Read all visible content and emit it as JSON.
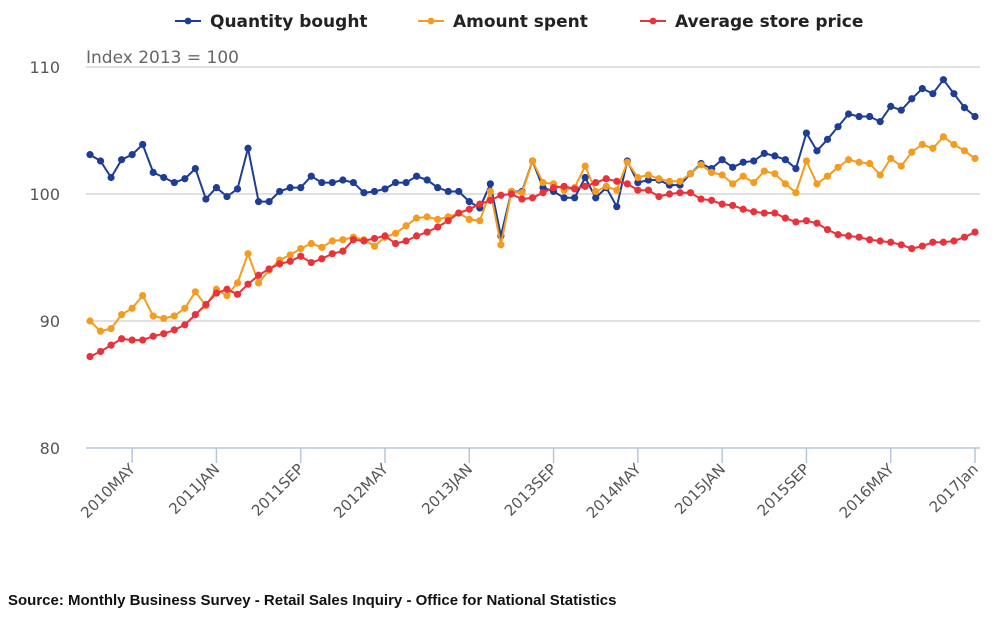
{
  "chart_data": {
    "type": "line",
    "title": "",
    "annotation": "Index 2013 = 100",
    "xlabel": "",
    "ylabel": "",
    "ylim": [
      80,
      110
    ],
    "yticks": [
      80,
      90,
      100,
      110
    ],
    "grid": true,
    "legend_position": "top-center",
    "x_start": "2010 Jan",
    "x_end": "2017 Jan",
    "x_frequency": "monthly",
    "xtick_labels": [
      {
        "label": "2010MAY",
        "index": 4
      },
      {
        "label": "2011JAN",
        "index": 12
      },
      {
        "label": "2011SEP",
        "index": 20
      },
      {
        "label": "2012MAY",
        "index": 28
      },
      {
        "label": "2013JAN",
        "index": 36
      },
      {
        "label": "2013SEP",
        "index": 44
      },
      {
        "label": "2014MAY",
        "index": 52
      },
      {
        "label": "2015JAN",
        "index": 60
      },
      {
        "label": "2015SEP",
        "index": 68
      },
      {
        "label": "2016MAY",
        "index": 76
      },
      {
        "label": "2017Jan",
        "index": 84
      }
    ],
    "series": [
      {
        "name": "Quantity bought",
        "color": "#1f3c96",
        "values": [
          103.1,
          102.6,
          101.3,
          102.7,
          103.1,
          103.9,
          101.7,
          101.3,
          100.9,
          101.2,
          102.0,
          99.6,
          100.5,
          99.8,
          100.4,
          103.6,
          99.4,
          99.4,
          100.2,
          100.5,
          100.5,
          101.4,
          100.9,
          100.9,
          101.1,
          100.9,
          100.1,
          100.2,
          100.4,
          100.9,
          100.9,
          101.4,
          101.1,
          100.5,
          100.2,
          100.2,
          99.4,
          98.9,
          100.8,
          96.7,
          100.2,
          100.2,
          102.6,
          100.5,
          100.2,
          99.7,
          99.7,
          101.3,
          99.7,
          100.5,
          99.0,
          102.6,
          100.9,
          101.1,
          101.1,
          100.7,
          100.7,
          101.6,
          102.4,
          102.0,
          102.7,
          102.1,
          102.5,
          102.6,
          103.2,
          103.0,
          102.7,
          102.0,
          104.8,
          103.4,
          104.3,
          105.3,
          106.3,
          106.1,
          106.1,
          105.7,
          106.9,
          106.6,
          107.5,
          108.3,
          107.9,
          109.0,
          107.9,
          106.8,
          106.1
        ]
      },
      {
        "name": "Amount spent",
        "color": "#f39c1f",
        "values": [
          90.0,
          89.2,
          89.4,
          90.5,
          91.0,
          92.0,
          90.4,
          90.2,
          90.4,
          91.0,
          92.3,
          91.2,
          92.5,
          92.0,
          93.0,
          95.3,
          93.0,
          94.0,
          94.8,
          95.2,
          95.7,
          96.1,
          95.8,
          96.3,
          96.4,
          96.6,
          96.4,
          95.9,
          96.6,
          96.9,
          97.5,
          98.1,
          98.2,
          98.0,
          98.2,
          98.5,
          98.0,
          97.9,
          100.2,
          96.0,
          100.2,
          100.1,
          102.6,
          100.9,
          100.8,
          100.3,
          100.5,
          102.2,
          100.2,
          100.6,
          100.3,
          102.5,
          101.3,
          101.5,
          101.2,
          101.0,
          101.0,
          101.6,
          102.3,
          101.7,
          101.5,
          100.8,
          101.4,
          100.9,
          101.8,
          101.6,
          100.8,
          100.1,
          102.6,
          100.8,
          101.4,
          102.1,
          102.7,
          102.5,
          102.4,
          101.5,
          102.8,
          102.2,
          103.3,
          103.9,
          103.6,
          104.5,
          103.9,
          103.4,
          102.8
        ]
      },
      {
        "name": "Average store price",
        "color": "#e8323c",
        "values": [
          87.2,
          87.6,
          88.1,
          88.6,
          88.5,
          88.5,
          88.8,
          89.0,
          89.3,
          89.7,
          90.5,
          91.3,
          92.2,
          92.5,
          92.1,
          92.9,
          93.6,
          94.1,
          94.5,
          94.7,
          95.1,
          94.6,
          94.9,
          95.3,
          95.5,
          96.4,
          96.3,
          96.5,
          96.7,
          96.1,
          96.3,
          96.7,
          97.0,
          97.4,
          97.9,
          98.5,
          98.8,
          99.2,
          99.5,
          99.9,
          100.0,
          99.6,
          99.7,
          100.1,
          100.5,
          100.6,
          100.4,
          100.6,
          100.9,
          101.2,
          101.0,
          100.8,
          100.3,
          100.3,
          99.8,
          100.0,
          100.1,
          100.1,
          99.6,
          99.5,
          99.2,
          99.1,
          98.8,
          98.6,
          98.5,
          98.5,
          98.1,
          97.8,
          97.9,
          97.7,
          97.2,
          96.8,
          96.7,
          96.6,
          96.4,
          96.3,
          96.2,
          96.0,
          95.7,
          95.9,
          96.2,
          96.2,
          96.3,
          96.6,
          97.0
        ]
      }
    ]
  },
  "legend": {
    "items": [
      "Quantity bought",
      "Amount spent",
      "Average store price"
    ]
  },
  "footer": {
    "source": "Source: Monthly Business Survey - Retail Sales Inquiry - Office for National Statistics"
  }
}
